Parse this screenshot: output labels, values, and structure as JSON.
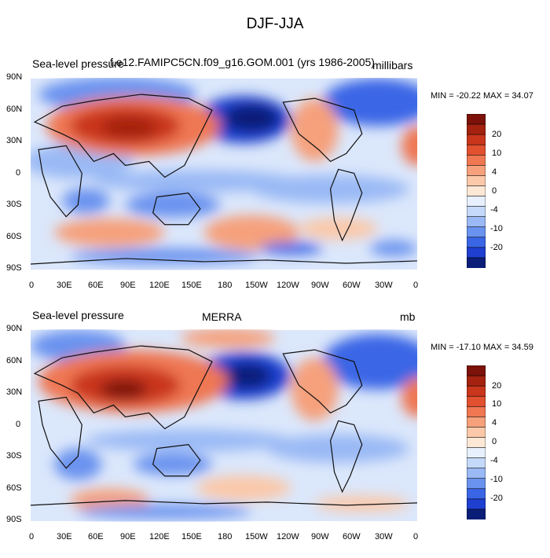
{
  "figure": {
    "title": "DJF-JJA"
  },
  "lat_ticks": [
    "90N",
    "60N",
    "30N",
    "0",
    "30S",
    "60S",
    "90S"
  ],
  "lon_ticks": [
    "0",
    "30E",
    "60E",
    "90E",
    "120E",
    "150E",
    "180",
    "150W",
    "120W",
    "90W",
    "60W",
    "30W",
    "0"
  ],
  "colorbar": {
    "colors": [
      "#0a1e78",
      "#1e3fcf",
      "#3a66e6",
      "#6a93ef",
      "#9ab9f5",
      "#c5d9fa",
      "#e7f0fc",
      "#fde7d5",
      "#fbc8a9",
      "#f6a07c",
      "#ef7752",
      "#e1502f",
      "#c9361c",
      "#a4220f",
      "#7c1209"
    ],
    "labels": [
      "20",
      "10",
      "4",
      "0",
      "-4",
      "-10",
      "-20"
    ]
  },
  "panels": [
    {
      "left_label": "Sea-level pressure",
      "center_label": "f.e12.FAMIPC5CN.f09_g16.GOM.001 (yrs 1986-2005)",
      "right_label": "millibars",
      "minmax": "MIN = -20.22 MAX =  34.07"
    },
    {
      "left_label": "Sea-level pressure",
      "center_label": "MERRA",
      "right_label": "mb",
      "minmax": "MIN = -17.10 MAX =  34.59"
    }
  ]
}
